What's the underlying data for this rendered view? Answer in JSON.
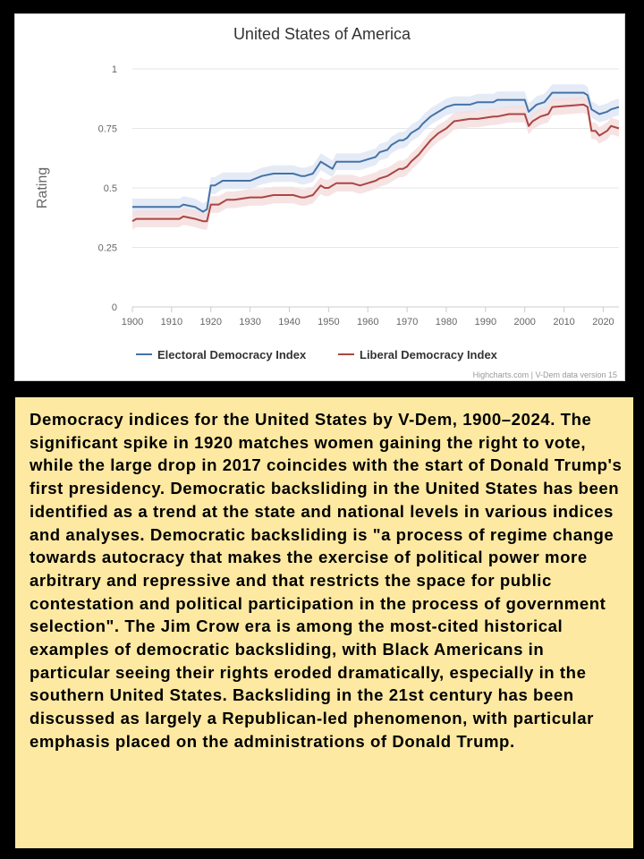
{
  "chart_data": {
    "type": "line",
    "title": "United States of America",
    "ylabel": "Rating",
    "xlabel": "",
    "credits": "Highcharts.com | V-Dem data version 15",
    "xlim": [
      1900,
      2024
    ],
    "ylim": [
      0,
      1
    ],
    "x_ticks": [
      "1900",
      "1910",
      "1920",
      "1930",
      "1940",
      "1950",
      "1960",
      "1970",
      "1980",
      "1990",
      "2000",
      "2010",
      "2020"
    ],
    "y_ticks": [
      "0",
      "0.25",
      "0.5",
      "0.75",
      "1"
    ],
    "grid": true,
    "legend": "bottom-center",
    "series": [
      {
        "name": "Electoral Democracy Index",
        "color": "#4572a7",
        "band_color": "#dfe7f4",
        "x": [
          1900,
          1912,
          1913,
          1916,
          1918,
          1919,
          1920,
          1921,
          1923,
          1930,
          1933,
          1936,
          1941,
          1943,
          1944,
          1946,
          1948,
          1949,
          1951,
          1952,
          1958,
          1960,
          1962,
          1963,
          1965,
          1966,
          1968,
          1969,
          1970,
          1971,
          1973,
          1974,
          1976,
          1978,
          1980,
          1982,
          1986,
          1988,
          1992,
          1993,
          2000,
          2001,
          2003,
          2005,
          2007,
          2015,
          2016,
          2017,
          2019,
          2021,
          2022,
          2024
        ],
        "values": [
          0.42,
          0.42,
          0.43,
          0.42,
          0.4,
          0.41,
          0.51,
          0.51,
          0.53,
          0.53,
          0.55,
          0.56,
          0.56,
          0.55,
          0.55,
          0.56,
          0.61,
          0.6,
          0.58,
          0.61,
          0.61,
          0.62,
          0.63,
          0.65,
          0.66,
          0.68,
          0.7,
          0.7,
          0.71,
          0.73,
          0.75,
          0.77,
          0.8,
          0.82,
          0.84,
          0.85,
          0.85,
          0.86,
          0.86,
          0.87,
          0.87,
          0.82,
          0.85,
          0.86,
          0.9,
          0.9,
          0.89,
          0.83,
          0.81,
          0.82,
          0.83,
          0.84
        ]
      },
      {
        "name": "Liberal Democracy Index",
        "color": "#aa4643",
        "band_color": "#f5dede",
        "x": [
          1900,
          1901,
          1912,
          1913,
          1916,
          1918,
          1919,
          1920,
          1922,
          1923,
          1924,
          1926,
          1930,
          1933,
          1936,
          1941,
          1943,
          1944,
          1946,
          1948,
          1949,
          1950,
          1951,
          1952,
          1956,
          1958,
          1960,
          1962,
          1963,
          1965,
          1966,
          1968,
          1969,
          1970,
          1971,
          1973,
          1974,
          1976,
          1978,
          1980,
          1982,
          1986,
          1988,
          1992,
          1993,
          1996,
          2000,
          2001,
          2002,
          2004,
          2006,
          2007,
          2015,
          2016,
          2017,
          2018,
          2019,
          2021,
          2022,
          2024
        ],
        "values": [
          0.36,
          0.37,
          0.37,
          0.38,
          0.37,
          0.36,
          0.36,
          0.43,
          0.43,
          0.44,
          0.45,
          0.45,
          0.46,
          0.46,
          0.47,
          0.47,
          0.46,
          0.46,
          0.47,
          0.51,
          0.5,
          0.5,
          0.51,
          0.52,
          0.52,
          0.51,
          0.52,
          0.53,
          0.54,
          0.55,
          0.56,
          0.58,
          0.58,
          0.59,
          0.61,
          0.64,
          0.66,
          0.7,
          0.73,
          0.75,
          0.78,
          0.79,
          0.79,
          0.8,
          0.8,
          0.81,
          0.81,
          0.76,
          0.78,
          0.8,
          0.81,
          0.84,
          0.85,
          0.84,
          0.74,
          0.74,
          0.72,
          0.74,
          0.76,
          0.75
        ]
      }
    ]
  },
  "caption": "Democracy indices for the United States by V-Dem, 1900–2024. The significant spike in 1920 matches women gaining the right to vote, while the large drop in 2017 coincides with the start of Donald Trump's first presidency. Democratic backsliding in the United States has been identified as a trend at the state and national levels in various indices and analyses. Democratic backsliding is \"a process of regime change towards autocracy that makes the exercise of political power more arbitrary and repressive and that restricts the space for public contestation and political participation in the process of government selection\". The Jim Crow era is among the most-cited historical examples of democratic backsliding, with Black Americans in particular seeing their rights eroded dramatically, especially in the southern United States. Backsliding in the 21st century has been discussed as largely a Republican-led phenomenon, with particular emphasis placed on the administrations of Donald Trump."
}
